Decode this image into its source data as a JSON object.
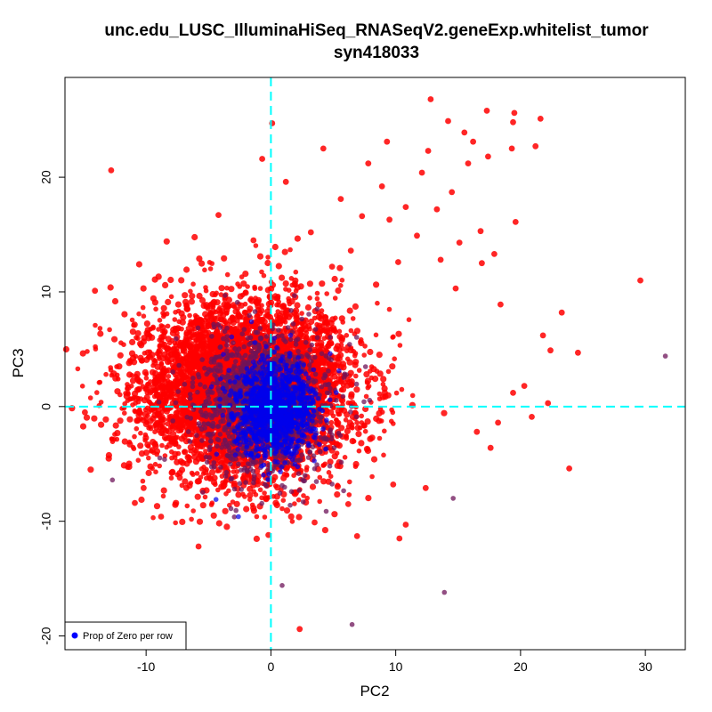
{
  "chart_data": {
    "type": "scatter",
    "title": "unc.edu_LUSC_IlluminaHiSeq_RNASeqV2.geneExp.whitelist_tumor",
    "subtitle": "syn418033",
    "xlabel": "PC2",
    "ylabel": "PC3",
    "xlim": [
      -16.5,
      33.2
    ],
    "ylim": [
      -21.2,
      28.7
    ],
    "xticks": [
      -10,
      0,
      10,
      20,
      30
    ],
    "yticks": [
      -20,
      -10,
      0,
      10,
      20
    ],
    "reference_lines": {
      "x": 0,
      "y": 0,
      "color": "#00FFFF",
      "style": "dashed"
    },
    "grid": false,
    "legend": {
      "position": "bottom-left",
      "entries": [
        {
          "label": "Prop of Zero per row",
          "color": "#0000FF"
        }
      ]
    },
    "colors": {
      "high": "#FF0000",
      "low": "#0000FF"
    },
    "color_variable": "Prop of Zero per row",
    "cloud": {
      "red": {
        "n": 5200,
        "center": [
          -2.0,
          1.5
        ],
        "sd": [
          4.2,
          3.8
        ]
      },
      "mid": {
        "n": 1400,
        "center": [
          -0.5,
          0.2
        ],
        "sd": [
          2.6,
          3.0
        ]
      },
      "blue": {
        "n": 1100,
        "center": [
          0.3,
          -0.3
        ],
        "sd": [
          1.6,
          2.0
        ]
      }
    },
    "points": [
      {
        "x": 12.8,
        "y": 26.8,
        "c": "red"
      },
      {
        "x": 17.3,
        "y": 25.8,
        "c": "red"
      },
      {
        "x": 19.5,
        "y": 25.6,
        "c": "red"
      },
      {
        "x": 21.6,
        "y": 25.1,
        "c": "red"
      },
      {
        "x": 0.1,
        "y": 24.7,
        "c": "red"
      },
      {
        "x": 14.2,
        "y": 24.9,
        "c": "red"
      },
      {
        "x": 19.4,
        "y": 24.8,
        "c": "red"
      },
      {
        "x": 15.5,
        "y": 23.9,
        "c": "red"
      },
      {
        "x": 16.2,
        "y": 23.1,
        "c": "red"
      },
      {
        "x": 19.3,
        "y": 22.5,
        "c": "red"
      },
      {
        "x": 21.2,
        "y": 22.7,
        "c": "red"
      },
      {
        "x": 4.2,
        "y": 22.5,
        "c": "red"
      },
      {
        "x": 9.3,
        "y": 23.1,
        "c": "red"
      },
      {
        "x": 12.6,
        "y": 22.3,
        "c": "red"
      },
      {
        "x": 17.4,
        "y": 21.8,
        "c": "red"
      },
      {
        "x": -12.8,
        "y": 20.6,
        "c": "red"
      },
      {
        "x": 7.8,
        "y": 21.2,
        "c": "red"
      },
      {
        "x": -0.7,
        "y": 21.6,
        "c": "red"
      },
      {
        "x": 15.8,
        "y": 21.2,
        "c": "red"
      },
      {
        "x": 12.1,
        "y": 20.4,
        "c": "red"
      },
      {
        "x": 8.9,
        "y": 19.2,
        "c": "red"
      },
      {
        "x": 14.5,
        "y": 18.7,
        "c": "red"
      },
      {
        "x": 5.6,
        "y": 18.1,
        "c": "red"
      },
      {
        "x": 10.8,
        "y": 17.4,
        "c": "red"
      },
      {
        "x": 13.3,
        "y": 17.2,
        "c": "red"
      },
      {
        "x": 1.2,
        "y": 19.6,
        "c": "red"
      },
      {
        "x": -4.2,
        "y": 16.7,
        "c": "red"
      },
      {
        "x": 7.3,
        "y": 16.6,
        "c": "red"
      },
      {
        "x": 9.5,
        "y": 16.3,
        "c": "red"
      },
      {
        "x": 19.6,
        "y": 16.1,
        "c": "red"
      },
      {
        "x": 16.8,
        "y": 15.3,
        "c": "red"
      },
      {
        "x": 3.2,
        "y": 15.2,
        "c": "red"
      },
      {
        "x": 11.7,
        "y": 14.9,
        "c": "red"
      },
      {
        "x": -1.4,
        "y": 14.5,
        "c": "red"
      },
      {
        "x": 15.1,
        "y": 14.3,
        "c": "red"
      },
      {
        "x": 6.4,
        "y": 13.6,
        "c": "red"
      },
      {
        "x": 17.9,
        "y": 13.3,
        "c": "red"
      },
      {
        "x": 13.6,
        "y": 12.8,
        "c": "red"
      },
      {
        "x": 10.2,
        "y": 12.6,
        "c": "red"
      },
      {
        "x": 16.9,
        "y": 12.5,
        "c": "red"
      },
      {
        "x": 4.9,
        "y": 12.2,
        "c": "red"
      },
      {
        "x": 29.6,
        "y": 11.0,
        "c": "red"
      },
      {
        "x": -14.1,
        "y": 10.1,
        "c": "red"
      },
      {
        "x": 14.8,
        "y": 10.3,
        "c": "red"
      },
      {
        "x": 23.3,
        "y": 8.2,
        "c": "red"
      },
      {
        "x": 18.4,
        "y": 8.9,
        "c": "red"
      },
      {
        "x": 21.8,
        "y": 6.2,
        "c": "red"
      },
      {
        "x": 22.4,
        "y": 4.9,
        "c": "red"
      },
      {
        "x": 24.6,
        "y": 4.7,
        "c": "red"
      },
      {
        "x": 31.6,
        "y": 4.4,
        "c": "mid"
      },
      {
        "x": 20.3,
        "y": 1.8,
        "c": "red"
      },
      {
        "x": 19.4,
        "y": 1.2,
        "c": "red"
      },
      {
        "x": 20.9,
        "y": -0.9,
        "c": "red"
      },
      {
        "x": 22.2,
        "y": 0.3,
        "c": "red"
      },
      {
        "x": -14.9,
        "y": -0.5,
        "c": "red"
      },
      {
        "x": 23.9,
        "y": -5.4,
        "c": "red"
      },
      {
        "x": 17.6,
        "y": -3.6,
        "c": "red"
      },
      {
        "x": 16.5,
        "y": -2.2,
        "c": "red"
      },
      {
        "x": 18.2,
        "y": -1.4,
        "c": "red"
      },
      {
        "x": -12.7,
        "y": -6.4,
        "c": "mid"
      },
      {
        "x": 13.9,
        "y": -16.2,
        "c": "mid"
      },
      {
        "x": 0.9,
        "y": -15.6,
        "c": "mid"
      },
      {
        "x": 6.5,
        "y": -19.0,
        "c": "mid"
      },
      {
        "x": 2.3,
        "y": -19.4,
        "c": "red"
      },
      {
        "x": -0.2,
        "y": -11.2,
        "c": "red"
      },
      {
        "x": -5.8,
        "y": -12.2,
        "c": "red"
      },
      {
        "x": 6.9,
        "y": -11.3,
        "c": "red"
      },
      {
        "x": 10.8,
        "y": -10.3,
        "c": "red"
      },
      {
        "x": -8.8,
        "y": -9.6,
        "c": "red"
      },
      {
        "x": 10.3,
        "y": -11.5,
        "c": "red"
      },
      {
        "x": 3.5,
        "y": -10.1,
        "c": "red"
      },
      {
        "x": -3.2,
        "y": -8.9,
        "c": "mid"
      },
      {
        "x": -4.4,
        "y": -8.1,
        "c": "blue"
      },
      {
        "x": -2.6,
        "y": -9.6,
        "c": "blue"
      },
      {
        "x": 6.2,
        "y": -8.5,
        "c": "red"
      },
      {
        "x": -10.9,
        "y": -8.4,
        "c": "red"
      },
      {
        "x": 14.6,
        "y": -8.0,
        "c": "mid"
      },
      {
        "x": 12.4,
        "y": -7.1,
        "c": "red"
      },
      {
        "x": -10.2,
        "y": -7.1,
        "c": "red"
      },
      {
        "x": 9.8,
        "y": -6.8,
        "c": "red"
      },
      {
        "x": -7.3,
        "y": -6.2,
        "c": "red"
      }
    ]
  }
}
